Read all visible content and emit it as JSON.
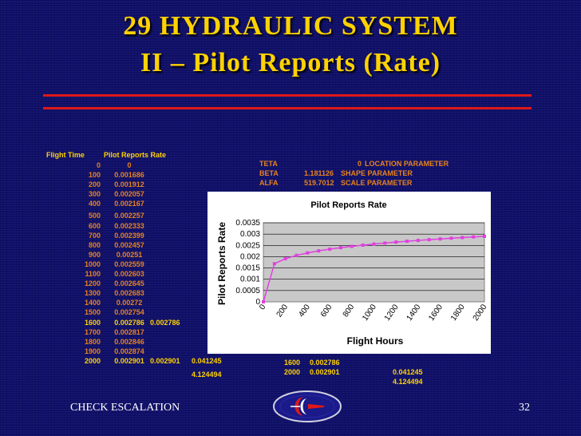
{
  "title": {
    "line1": "29  HYDRAULIC SYSTEM",
    "line2": "II – Pilot Reports (Rate)"
  },
  "table": {
    "col_flight_time": "Flight Time",
    "col_rate": "Pilot Reports Rate",
    "rows": [
      {
        "t": "0",
        "r": "0"
      },
      {
        "t": "100",
        "r": "0.001686"
      },
      {
        "t": "200",
        "r": "0.001912"
      },
      {
        "t": "300",
        "r": "0.002057"
      },
      {
        "t": "400",
        "r": "0.002167"
      },
      {
        "t": "500",
        "r": "0.002257"
      },
      {
        "t": "600",
        "r": "0.002333"
      },
      {
        "t": "700",
        "r": "0.002399"
      },
      {
        "t": "800",
        "r": "0.002457"
      },
      {
        "t": "900",
        "r": "0.00251"
      },
      {
        "t": "1000",
        "r": "0.002559"
      },
      {
        "t": "1100",
        "r": "0.002603"
      },
      {
        "t": "1200",
        "r": "0.002645"
      },
      {
        "t": "1300",
        "r": "0.002683"
      },
      {
        "t": "1400",
        "r": "0.00272"
      },
      {
        "t": "1500",
        "r": "0.002754"
      },
      {
        "t": "1600",
        "r": "0.002786",
        "x1": "0.002786",
        "hl": true
      },
      {
        "t": "1700",
        "r": "0.002817"
      },
      {
        "t": "1800",
        "r": "0.002846"
      },
      {
        "t": "1900",
        "r": "0.002874"
      },
      {
        "t": "2000",
        "r": "0.002901",
        "x1": "0.002901",
        "x2": "0.041245",
        "hl": true
      }
    ],
    "extra_value": "4.124494"
  },
  "params": [
    {
      "name": "TETA",
      "value": "0",
      "desc": "LOCATION  PARAMETER"
    },
    {
      "name": "BETA",
      "value": "1.181126",
      "desc": "SHAPE PARAMETER"
    },
    {
      "name": "ALFA",
      "value": "519.7012",
      "desc": "SCALE PARAMETER"
    }
  ],
  "bottom_notes": {
    "r1_t": "1600",
    "r1_v": "0.002786",
    "r2_t": "2000",
    "r2_v": "0.002901",
    "v3": "0.041245",
    "v4": "4.124494"
  },
  "footer": {
    "left": "CHECK ESCALATION",
    "page": "32"
  },
  "colors": {
    "title": "#ffd200",
    "rule": "#e01818",
    "table_text": "#e8821a",
    "highlight": "#ffd200",
    "series": "#e040e0"
  },
  "chart_data": {
    "type": "line",
    "title": "Pilot Reports Rate",
    "xlabel": "Flight Hours",
    "ylabel": "Pilot Reports Rate",
    "x": [
      0,
      100,
      200,
      300,
      400,
      500,
      600,
      700,
      800,
      900,
      1000,
      1100,
      1200,
      1300,
      1400,
      1500,
      1600,
      1700,
      1800,
      1900,
      2000
    ],
    "y": [
      0,
      0.001686,
      0.001912,
      0.002057,
      0.002167,
      0.002257,
      0.002333,
      0.002399,
      0.002457,
      0.00251,
      0.002559,
      0.002603,
      0.002645,
      0.002683,
      0.00272,
      0.002754,
      0.002786,
      0.002817,
      0.002846,
      0.002874,
      0.002901
    ],
    "x_ticks": [
      "0",
      "200",
      "400",
      "600",
      "800",
      "1000",
      "1200",
      "1400",
      "1600",
      "1800",
      "2000"
    ],
    "y_ticks": [
      "0",
      "0.0005",
      "0.001",
      "0.0015",
      "0.002",
      "0.0025",
      "0.003",
      "0.0035"
    ],
    "ylim": [
      0,
      0.0035
    ],
    "xlim": [
      0,
      2000
    ],
    "grid": true
  }
}
